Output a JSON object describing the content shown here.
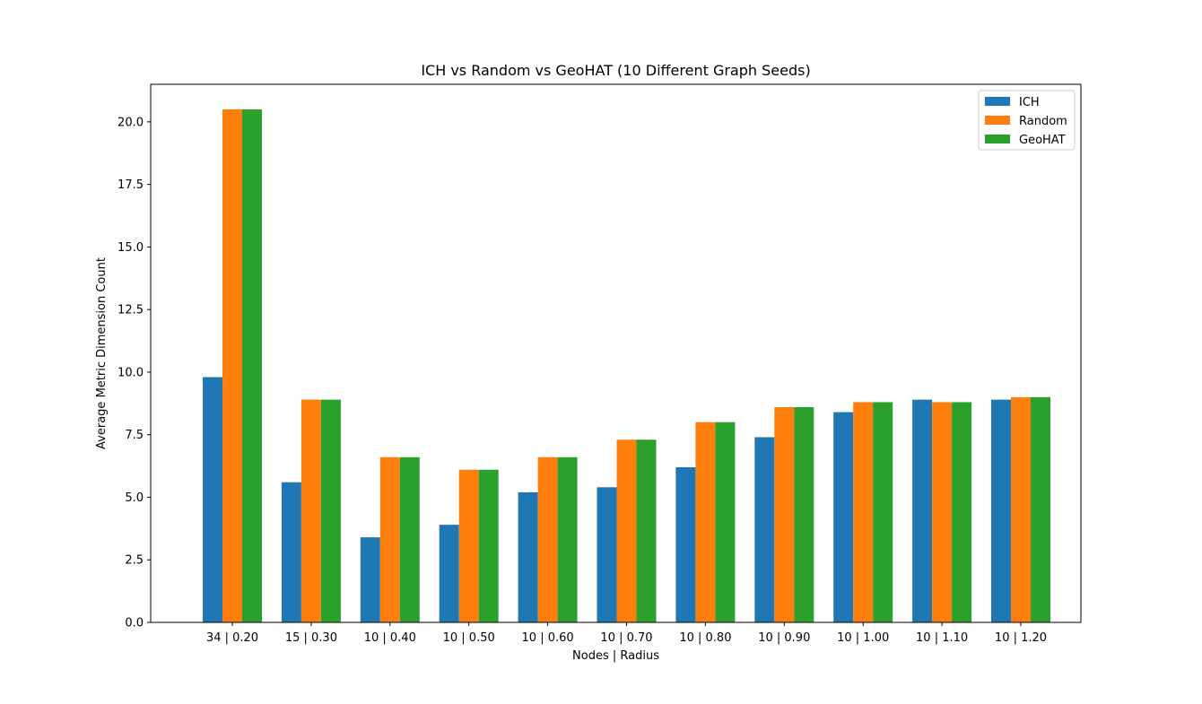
{
  "chart_data": {
    "type": "bar",
    "title": "ICH vs Random vs GeoHAT (10 Different Graph Seeds)",
    "xlabel": "Nodes |  Radius",
    "ylabel": "Average Metric Dimension Count",
    "categories": [
      "34 | 0.20",
      "15 | 0.30",
      "10 | 0.40",
      "10 | 0.50",
      "10 | 0.60",
      "10 | 0.70",
      "10 | 0.80",
      "10 | 0.90",
      "10 | 1.00",
      "10 | 1.10",
      "10 | 1.20"
    ],
    "series": [
      {
        "name": "ICH",
        "color": "#1f77b4",
        "values": [
          9.8,
          5.6,
          3.4,
          3.9,
          5.2,
          5.4,
          6.2,
          7.4,
          8.4,
          8.9,
          8.9
        ]
      },
      {
        "name": "Random",
        "color": "#ff7f0e",
        "values": [
          20.5,
          8.9,
          6.6,
          6.1,
          6.6,
          7.3,
          8.0,
          8.6,
          8.8,
          8.8,
          9.0
        ]
      },
      {
        "name": "GeoHAT",
        "color": "#2ca02c",
        "values": [
          20.5,
          8.9,
          6.6,
          6.1,
          6.6,
          7.3,
          8.0,
          8.6,
          8.8,
          8.8,
          9.0
        ]
      }
    ],
    "ylim": [
      0,
      21.5
    ],
    "yticks": [
      0.0,
      2.5,
      5.0,
      7.5,
      10.0,
      12.5,
      15.0,
      17.5,
      20.0
    ],
    "ytick_labels": [
      "0.0",
      "2.5",
      "5.0",
      "7.5",
      "10.0",
      "12.5",
      "15.0",
      "17.5",
      "20.0"
    ],
    "grid": false,
    "legend_position": "top-right"
  }
}
